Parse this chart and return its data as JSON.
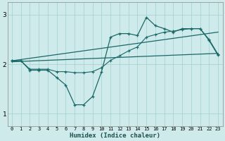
{
  "xlabel": "Humidex (Indice chaleur)",
  "bg_color": "#ceeaea",
  "grid_color": "#a8d4d4",
  "line_color": "#1a6868",
  "xlim": [
    -0.5,
    23.5
  ],
  "ylim": [
    0.75,
    3.25
  ],
  "yticks": [
    1,
    2,
    3
  ],
  "xticks": [
    0,
    1,
    2,
    3,
    4,
    5,
    6,
    7,
    8,
    9,
    10,
    11,
    12,
    13,
    14,
    15,
    16,
    17,
    18,
    19,
    20,
    21,
    22,
    23
  ],
  "series1_x": [
    0,
    1,
    2,
    3,
    4,
    5,
    6,
    7,
    8,
    9,
    10,
    11,
    12,
    13,
    14,
    15,
    16,
    17,
    18,
    19,
    20,
    21,
    22,
    23
  ],
  "series1_y": [
    2.07,
    2.07,
    1.88,
    1.88,
    1.88,
    1.73,
    1.58,
    1.18,
    1.18,
    1.35,
    1.85,
    2.55,
    2.62,
    2.62,
    2.58,
    2.95,
    2.78,
    2.72,
    2.65,
    2.72,
    2.72,
    2.72,
    2.48,
    2.18
  ],
  "series2_x": [
    0,
    1,
    2,
    3,
    4,
    5,
    6,
    7,
    8,
    9,
    10,
    11,
    12,
    13,
    14,
    15,
    16,
    17,
    18,
    19,
    20,
    21,
    22,
    23
  ],
  "series2_y": [
    2.07,
    2.07,
    1.9,
    1.9,
    1.9,
    1.85,
    1.85,
    1.83,
    1.83,
    1.85,
    1.93,
    2.08,
    2.17,
    2.27,
    2.35,
    2.55,
    2.6,
    2.65,
    2.67,
    2.7,
    2.72,
    2.72,
    2.5,
    2.2
  ],
  "trend1_x": [
    0,
    23
  ],
  "trend1_y": [
    2.05,
    2.22
  ],
  "trend2_x": [
    0,
    23
  ],
  "trend2_y": [
    2.07,
    2.65
  ]
}
